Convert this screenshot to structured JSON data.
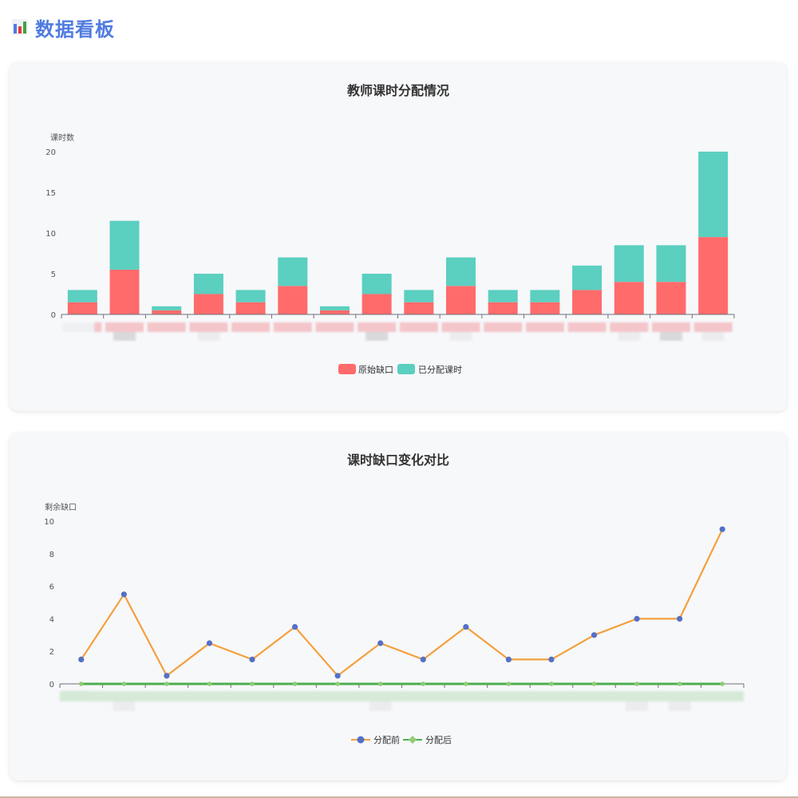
{
  "header": {
    "title": "数据看板",
    "icon": "bar-chart-icon"
  },
  "chart_data": [
    {
      "type": "bar",
      "stacked": true,
      "title": "教师课时分配情况",
      "ylabel": "课时数",
      "ylim": [
        0,
        20
      ],
      "yticks": [
        0,
        5,
        10,
        15,
        20
      ],
      "legend_position": "bottom",
      "categories_count": 16,
      "series": [
        {
          "name": "原始缺口",
          "color": "#ff6b6b",
          "values": [
            1.5,
            5.5,
            0.5,
            2.5,
            1.5,
            3.5,
            0.5,
            2.5,
            1.5,
            3.5,
            1.5,
            1.5,
            3,
            4,
            4,
            9.5
          ]
        },
        {
          "name": "已分配课时",
          "color": "#5bcfc0",
          "values": [
            1.5,
            6,
            0.5,
            2.5,
            1.5,
            3.5,
            0.5,
            2.5,
            1.5,
            3.5,
            1.5,
            1.5,
            3,
            4.5,
            4.5,
            10.5
          ]
        }
      ]
    },
    {
      "type": "line",
      "title": "课时缺口变化对比",
      "ylabel": "剩余缺口",
      "ylim": [
        0,
        10
      ],
      "yticks": [
        0,
        2,
        4,
        6,
        8,
        10
      ],
      "legend_position": "bottom",
      "categories_count": 16,
      "series": [
        {
          "name": "分配前",
          "line_color": "#f4a03c",
          "marker_color": "#5470c6",
          "values": [
            1.5,
            5.5,
            0.5,
            2.5,
            1.5,
            3.5,
            0.5,
            2.5,
            1.5,
            3.5,
            1.5,
            1.5,
            3,
            4,
            4,
            9.5
          ]
        },
        {
          "name": "分配后",
          "line_color": "#4caf50",
          "marker_color": "#91cc75",
          "values": [
            0,
            0,
            0,
            0,
            0,
            0,
            0,
            0,
            0,
            0,
            0,
            0,
            0,
            0,
            0,
            0
          ]
        }
      ]
    }
  ]
}
